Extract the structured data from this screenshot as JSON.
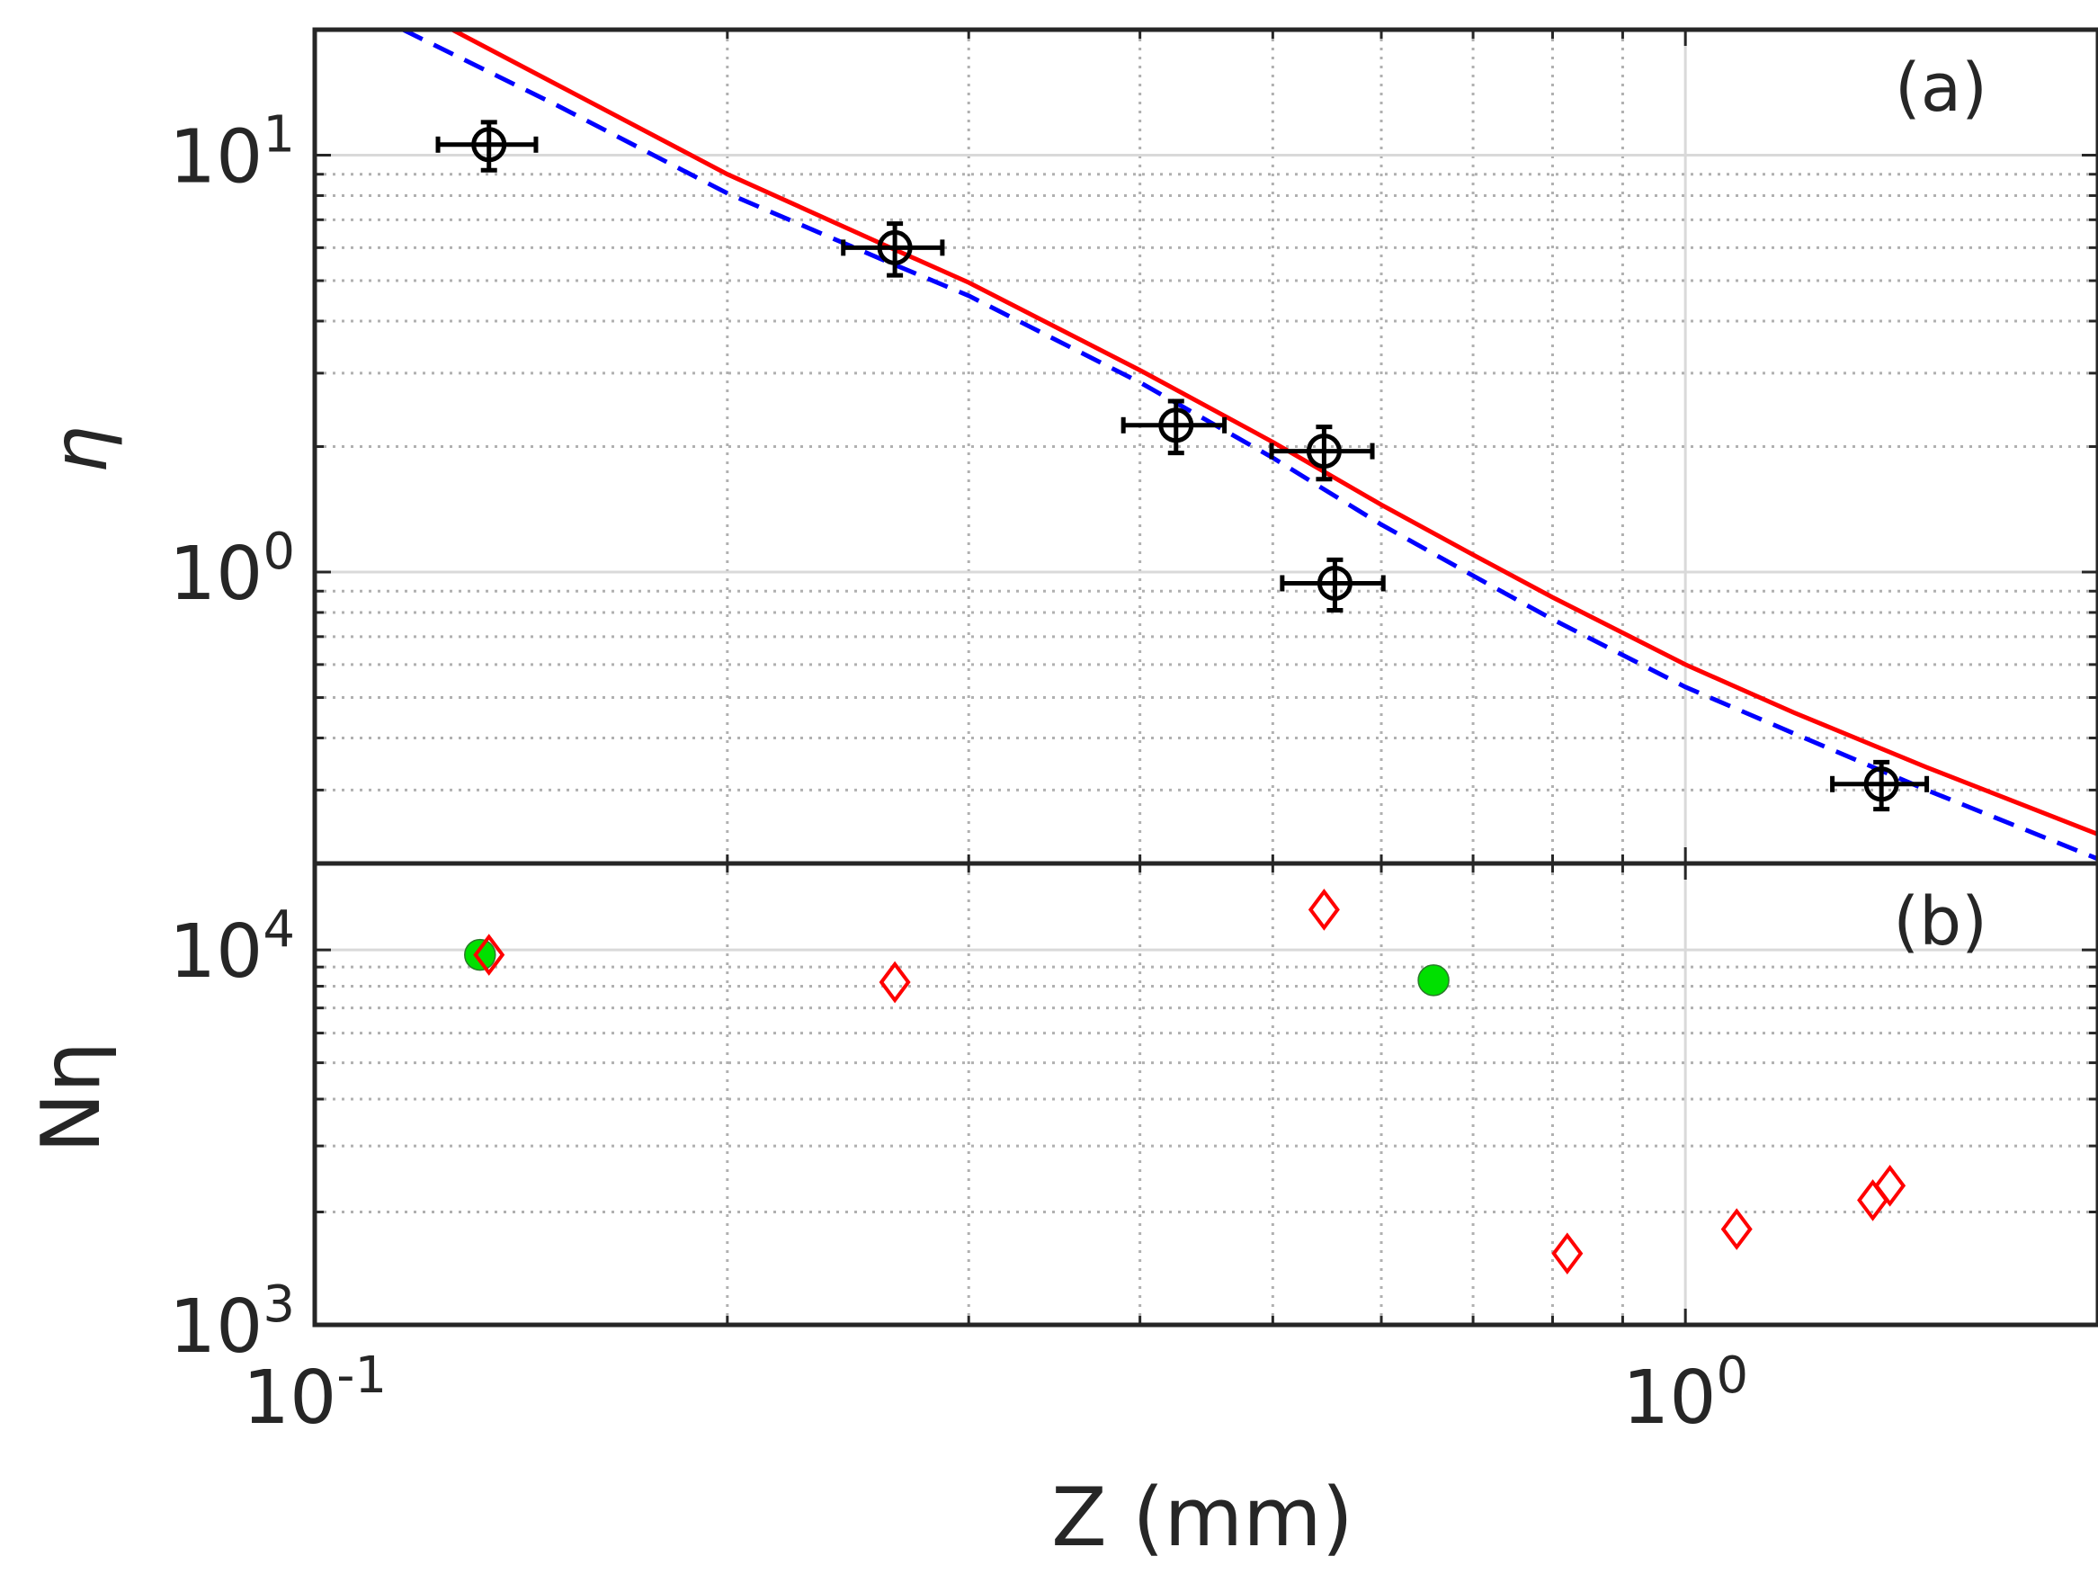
{
  "chart_data": [
    {
      "panel": "a",
      "panel_label": "(a)",
      "type": "scatter",
      "xscale": "log",
      "yscale": "log",
      "xlim": [
        0.1,
        2.0
      ],
      "ylim": [
        0.2,
        20.0
      ],
      "ylabel": "η",
      "x_ticks": [
        {
          "value": 0.1,
          "base": "10",
          "exp": "-1"
        },
        {
          "value": 1.0,
          "base": "10",
          "exp": "0"
        }
      ],
      "y_ticks": [
        {
          "value": 1.0,
          "base": "10",
          "exp": "0"
        },
        {
          "value": 10.0,
          "base": "10",
          "exp": "1"
        }
      ],
      "grid": true,
      "points": [
        {
          "x": 0.134,
          "y": 10.6,
          "xerr": 0.011,
          "yerr": 1.4
        },
        {
          "x": 0.265,
          "y": 6.0,
          "xerr": 0.022,
          "yerr": 0.85
        },
        {
          "x": 0.425,
          "y": 2.25,
          "xerr": 0.036,
          "yerr": 0.32
        },
        {
          "x": 0.545,
          "y": 1.95,
          "xerr": 0.046,
          "yerr": 0.28
        },
        {
          "x": 0.555,
          "y": 0.94,
          "xerr": 0.047,
          "yerr": 0.13
        },
        {
          "x": 1.39,
          "y": 0.31,
          "xerr": 0.11,
          "yerr": 0.04
        }
      ],
      "lines": [
        {
          "name": "solid",
          "style": "solid",
          "color": "#ff0000",
          "x": [
            0.126,
            0.15,
            0.2,
            0.26,
            0.3,
            0.4,
            0.5,
            0.6,
            0.7,
            0.8,
            1.0,
            1.2,
            1.5,
            2.0
          ],
          "y": [
            20.0,
            14.8,
            9.0,
            6.1,
            4.95,
            3.05,
            2.05,
            1.45,
            1.1,
            0.87,
            0.6,
            0.46,
            0.34,
            0.235
          ]
        },
        {
          "name": "dashed",
          "style": "dashed",
          "color": "#0000ff",
          "x": [
            0.116,
            0.15,
            0.2,
            0.26,
            0.3,
            0.4,
            0.5,
            0.6,
            0.7,
            0.8,
            1.0,
            1.2,
            1.5,
            2.0
          ],
          "y": [
            20.0,
            13.2,
            8.1,
            5.6,
            4.6,
            2.85,
            1.88,
            1.3,
            0.98,
            0.77,
            0.53,
            0.41,
            0.3,
            0.205
          ]
        }
      ]
    },
    {
      "panel": "b",
      "panel_label": "(b)",
      "type": "scatter",
      "xscale": "log",
      "yscale": "log",
      "xlim": [
        0.1,
        2.0
      ],
      "ylim": [
        1000,
        17000
      ],
      "xlabel": "Z (mm)",
      "ylabel": "Nη",
      "x_ticks": [
        {
          "value": 0.1,
          "base": "10",
          "exp": "-1"
        },
        {
          "value": 1.0,
          "base": "10",
          "exp": "0"
        }
      ],
      "y_ticks": [
        {
          "value": 1000,
          "base": "10",
          "exp": "3"
        },
        {
          "value": 10000,
          "base": "10",
          "exp": "4"
        }
      ],
      "grid": true,
      "series": [
        {
          "name": "circles",
          "marker": "circle",
          "color": "#00e000",
          "x": [
            0.132,
            0.655
          ],
          "y": [
            9700,
            8300
          ]
        },
        {
          "name": "diamonds",
          "marker": "diamond",
          "color": "#ff0000",
          "x": [
            0.134,
            0.265,
            0.545,
            0.82,
            1.09,
            1.37,
            1.41
          ],
          "y": [
            9700,
            8200,
            12800,
            1550,
            1800,
            2150,
            2350
          ]
        }
      ]
    }
  ]
}
